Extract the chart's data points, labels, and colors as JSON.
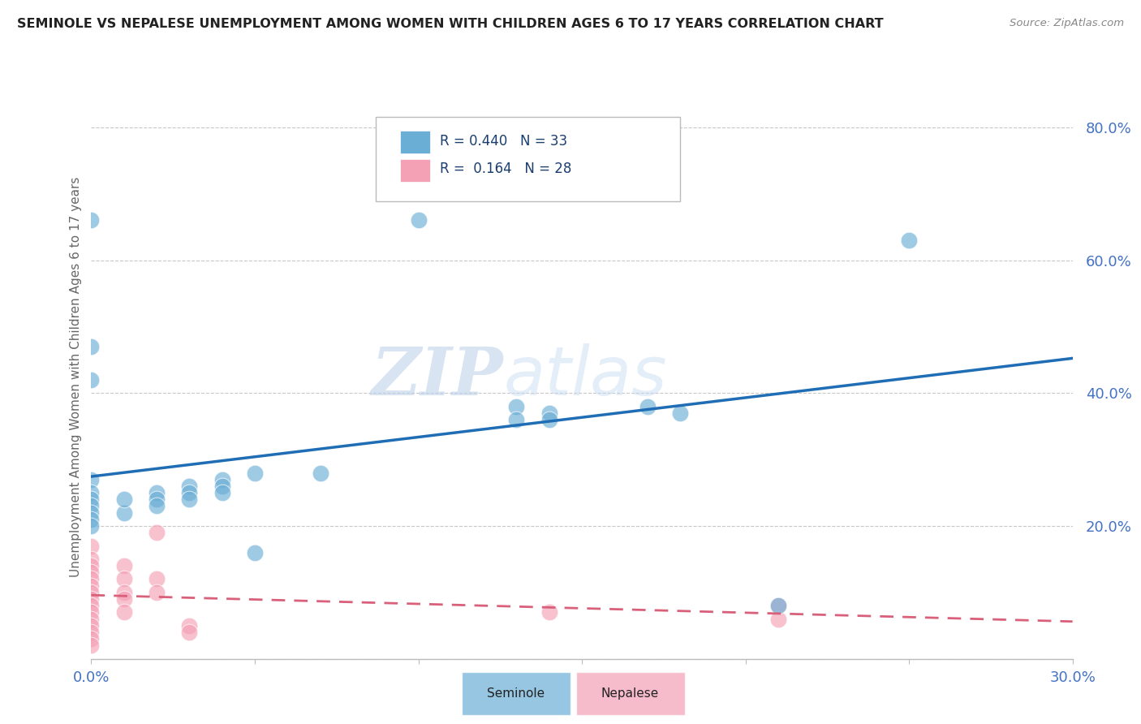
{
  "title": "SEMINOLE VS NEPALESE UNEMPLOYMENT AMONG WOMEN WITH CHILDREN AGES 6 TO 17 YEARS CORRELATION CHART",
  "source": "Source: ZipAtlas.com",
  "ylabel": "Unemployment Among Women with Children Ages 6 to 17 years",
  "xlabel": "",
  "xlim": [
    0.0,
    0.3
  ],
  "ylim": [
    0.0,
    0.85
  ],
  "xticks": [
    0.0,
    0.05,
    0.1,
    0.15,
    0.2,
    0.25,
    0.3
  ],
  "xticklabels": [
    "0.0%",
    "",
    "",
    "",
    "",
    "",
    "30.0%"
  ],
  "yticks": [
    0.0,
    0.2,
    0.4,
    0.6,
    0.8
  ],
  "yticklabels": [
    "",
    "20.0%",
    "40.0%",
    "60.0%",
    "80.0%"
  ],
  "seminole_R": "0.440",
  "seminole_N": "33",
  "nepalese_R": "0.164",
  "nepalese_N": "28",
  "seminole_color": "#6aaed6",
  "nepalese_color": "#f4a0b5",
  "trendline_seminole_color": "#1f6eb5",
  "trendline_nepalese_color": "#d9607a",
  "watermark_zip": "ZIP",
  "watermark_atlas": "atlas",
  "seminole_points": [
    [
      0.0,
      0.66
    ],
    [
      0.0,
      0.47
    ],
    [
      0.0,
      0.42
    ],
    [
      0.0,
      0.27
    ],
    [
      0.0,
      0.25
    ],
    [
      0.0,
      0.24
    ],
    [
      0.0,
      0.23
    ],
    [
      0.0,
      0.22
    ],
    [
      0.0,
      0.21
    ],
    [
      0.0,
      0.2
    ],
    [
      0.01,
      0.22
    ],
    [
      0.01,
      0.24
    ],
    [
      0.02,
      0.25
    ],
    [
      0.02,
      0.24
    ],
    [
      0.02,
      0.23
    ],
    [
      0.03,
      0.26
    ],
    [
      0.03,
      0.25
    ],
    [
      0.03,
      0.24
    ],
    [
      0.04,
      0.27
    ],
    [
      0.04,
      0.26
    ],
    [
      0.04,
      0.25
    ],
    [
      0.05,
      0.28
    ],
    [
      0.05,
      0.16
    ],
    [
      0.07,
      0.28
    ],
    [
      0.1,
      0.66
    ],
    [
      0.13,
      0.38
    ],
    [
      0.13,
      0.36
    ],
    [
      0.14,
      0.37
    ],
    [
      0.14,
      0.36
    ],
    [
      0.17,
      0.38
    ],
    [
      0.18,
      0.37
    ],
    [
      0.21,
      0.08
    ],
    [
      0.25,
      0.63
    ]
  ],
  "nepalese_points": [
    [
      0.0,
      0.17
    ],
    [
      0.0,
      0.15
    ],
    [
      0.0,
      0.14
    ],
    [
      0.0,
      0.13
    ],
    [
      0.0,
      0.12
    ],
    [
      0.0,
      0.11
    ],
    [
      0.0,
      0.1
    ],
    [
      0.0,
      0.09
    ],
    [
      0.0,
      0.08
    ],
    [
      0.0,
      0.07
    ],
    [
      0.0,
      0.06
    ],
    [
      0.0,
      0.05
    ],
    [
      0.0,
      0.04
    ],
    [
      0.0,
      0.03
    ],
    [
      0.0,
      0.02
    ],
    [
      0.01,
      0.14
    ],
    [
      0.01,
      0.12
    ],
    [
      0.01,
      0.1
    ],
    [
      0.01,
      0.09
    ],
    [
      0.01,
      0.07
    ],
    [
      0.02,
      0.19
    ],
    [
      0.02,
      0.12
    ],
    [
      0.02,
      0.1
    ],
    [
      0.03,
      0.05
    ],
    [
      0.03,
      0.04
    ],
    [
      0.14,
      0.07
    ],
    [
      0.21,
      0.08
    ],
    [
      0.21,
      0.06
    ]
  ],
  "background_color": "#ffffff",
  "grid_color": "#c8c8c8"
}
